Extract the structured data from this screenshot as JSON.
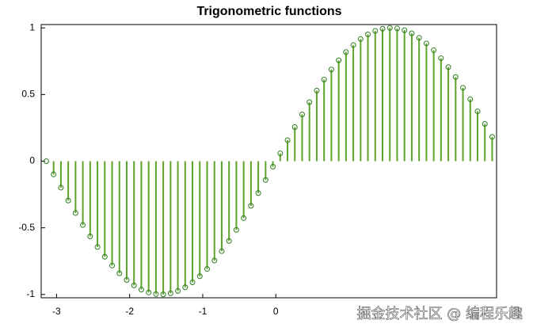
{
  "chart_data": {
    "type": "stem",
    "title": "Trigonometric functions",
    "x": [
      -3.14,
      -3.04,
      -2.94,
      -2.84,
      -2.74,
      -2.64,
      -2.54,
      -2.44,
      -2.34,
      -2.24,
      -2.14,
      -2.04,
      -1.94,
      -1.84,
      -1.74,
      -1.64,
      -1.54,
      -1.44,
      -1.34,
      -1.24,
      -1.14,
      -1.04,
      -0.94,
      -0.84,
      -0.74,
      -0.64,
      -0.54,
      -0.44,
      -0.34,
      -0.24,
      -0.14,
      -0.04,
      0.06,
      0.16,
      0.26,
      0.36,
      0.46,
      0.56,
      0.66,
      0.76,
      0.86,
      0.96,
      1.06,
      1.16,
      1.26,
      1.36,
      1.46,
      1.56,
      1.66,
      1.76,
      1.86,
      1.96,
      2.06,
      2.16,
      2.26,
      2.36,
      2.46,
      2.56,
      2.66,
      2.76,
      2.86,
      2.96
    ],
    "series": [
      {
        "color": "#5ea32b",
        "values": [
          0,
          -0.0998,
          -0.1987,
          -0.2955,
          -0.3894,
          -0.4794,
          -0.5646,
          -0.6442,
          -0.7174,
          -0.7833,
          -0.8415,
          -0.8912,
          -0.932,
          -0.9636,
          -0.9854,
          -0.9975,
          -0.9996,
          -0.9917,
          -0.9738,
          -0.9463,
          -0.9093,
          -0.8632,
          -0.8085,
          -0.7457,
          -0.6755,
          -0.5985,
          -0.5155,
          -0.4274,
          -0.335,
          -0.2392,
          -0.1411,
          -0.0416,
          0.0584,
          0.1577,
          0.2555,
          0.3508,
          0.4425,
          0.5298,
          0.6119,
          0.6878,
          0.7568,
          0.8183,
          0.8716,
          0.9162,
          0.9516,
          0.9775,
          0.9937,
          0.9999,
          0.9962,
          0.9825,
          0.9589,
          0.9258,
          0.8835,
          0.8323,
          0.7728,
          0.7055,
          0.6313,
          0.5507,
          0.4646,
          0.3739,
          0.2794,
          0.1822
        ]
      }
    ],
    "xlim": [
      -3.21,
      3.02
    ],
    "ylim": [
      -1.025,
      1.025
    ],
    "xticks": [
      -3,
      -2,
      -1,
      0
    ],
    "yticks": [
      -1,
      -0.5,
      0,
      0.5,
      1
    ],
    "watermark": "掘金技术社区 @ 编程乐趣"
  }
}
